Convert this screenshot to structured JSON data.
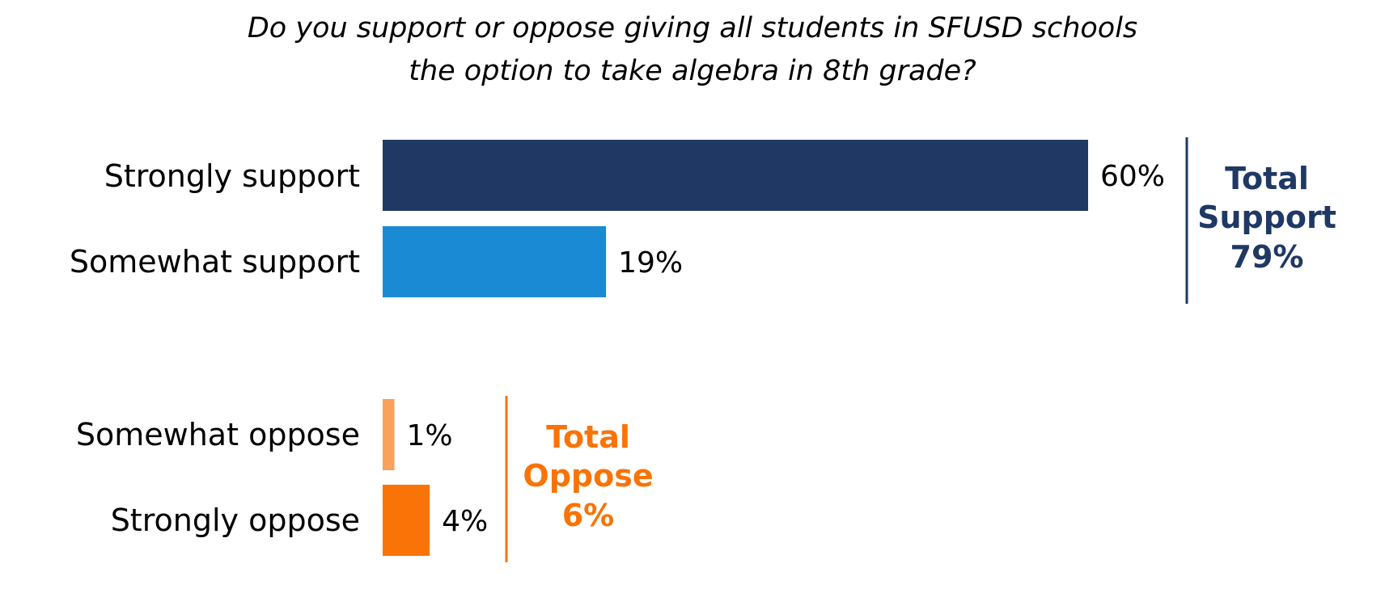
{
  "chart_data": {
    "type": "bar",
    "orientation": "horizontal",
    "title": [
      "Do you support or oppose giving all students in SFUSD schools",
      "the option to take algebra in 8th grade?"
    ],
    "categories": [
      "Strongly support",
      "Somewhat support",
      "Somewhat oppose",
      "Strongly oppose"
    ],
    "values": [
      60,
      19,
      1,
      4
    ],
    "value_labels": [
      "60%",
      "19%",
      "1%",
      "4%"
    ],
    "colors": [
      "#1f3864",
      "#1a8ad4",
      "#f9a05a",
      "#f97306"
    ],
    "xlim": [
      0,
      60
    ],
    "grid": false,
    "groups": [
      {
        "line1": "Total",
        "line2": "Support",
        "value": "79%",
        "color": "#1f3864"
      },
      {
        "line1": "Total",
        "line2": "Oppose",
        "value": "6%",
        "color": "#f97306"
      }
    ]
  }
}
